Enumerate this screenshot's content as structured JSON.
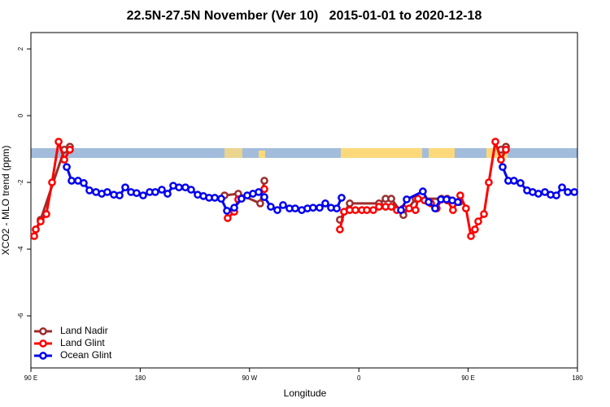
{
  "chart_data": {
    "type": "line",
    "title": "22.5N-27.5N November (Ver 10)   2015-01-01 to 2020-12-18",
    "x_label": "Longitude",
    "y_label": "XCO2 - MLO trend (ppm)",
    "xlim": [
      90,
      540
    ],
    "xticks": [
      {
        "value": 90,
        "label": "90 E"
      },
      {
        "value": 180,
        "label": "180"
      },
      {
        "value": 270,
        "label": "90 W"
      },
      {
        "value": 360,
        "label": "0"
      },
      {
        "value": 450,
        "label": "90 E"
      },
      {
        "value": 540,
        "label": "180"
      }
    ],
    "ylim": [
      -7.56,
      2.49
    ],
    "yticks": [
      2,
      0,
      -2,
      -4,
      -6
    ],
    "legend": "bottom-left",
    "series": [
      {
        "name": "Land Nadir",
        "color": "#9b2d2d",
        "x": [
          94.0,
          98.0,
          117.5,
          122.1,
          200,
          249.4,
          260.7,
          278.8,
          282.2,
          320,
          344.4,
          352.5,
          376.6,
          382.0,
          386.7,
          396.7,
          406.7,
          428.1,
          432.8,
          442.9,
          460,
          477.0,
          481.1
        ],
        "values": [
          -3.41,
          -3.12,
          -1.02,
          -0.93,
          null,
          -2.39,
          -2.34,
          -2.63,
          -1.95,
          null,
          -3.12,
          -2.63,
          -2.63,
          -2.49,
          -2.49,
          -2.98,
          -2.49,
          -2.49,
          -2.49,
          -2.59,
          null,
          -1.02,
          -0.93
        ]
      },
      {
        "name": "Land Glint",
        "color": "#ff0000",
        "x": [
          92.7,
          94.0,
          98.0,
          102.7,
          107.4,
          112.8,
          117.5,
          122.1,
          200,
          252.0,
          257.4,
          260.7,
          270,
          282.2,
          320,
          344.4,
          347.8,
          352.5,
          357.2,
          362.5,
          366.6,
          371.9,
          376.6,
          382.0,
          386.7,
          391.3,
          396.7,
          401.4,
          406.7,
          408.7,
          414.1,
          419.4,
          424.1,
          428.1,
          432.8,
          437.5,
          443.5,
          448.2,
          452.3,
          455.6,
          458.3,
          463.0,
          467.0,
          472.4,
          477.0,
          481.1
        ],
        "values": [
          -3.61,
          -3.41,
          -3.17,
          -2.95,
          -2.0,
          -0.78,
          -1.32,
          -1.02,
          null,
          -3.07,
          -2.88,
          -2.51,
          null,
          -2.2,
          null,
          -3.41,
          -2.88,
          -2.83,
          -2.83,
          -2.83,
          -2.83,
          -2.83,
          -2.73,
          -2.73,
          -2.73,
          -2.83,
          -2.78,
          -2.78,
          -2.83,
          -2.49,
          -2.54,
          -2.63,
          -2.78,
          -2.51,
          -2.54,
          -2.83,
          -2.39,
          -2.78,
          -3.61,
          -3.41,
          -3.17,
          -2.95,
          -2.0,
          -0.78,
          -1.32,
          -1.02
        ]
      },
      {
        "name": "Ocean Glint",
        "color": "#0000ee",
        "x": [
          119.5,
          123.5,
          128.8,
          133.5,
          138.2,
          143.6,
          148.3,
          152.9,
          158.3,
          163.0,
          167.7,
          172.4,
          177.0,
          182.4,
          187.8,
          192.4,
          197.8,
          202.5,
          207.2,
          211.9,
          217.2,
          221.9,
          227.3,
          232.0,
          236.7,
          241.4,
          246.7,
          251.4,
          257.4,
          263.4,
          268.1,
          272.8,
          277.5,
          282.2,
          287.5,
          292.9,
          297.6,
          302.9,
          307.6,
          313.0,
          317.7,
          322.3,
          327.7,
          332.4,
          337.1,
          341.8,
          345.8,
          370,
          394.7,
          399.4,
          412.7,
          417.4,
          422.8,
          427.5,
          432.2,
          436.9,
          441.5,
          460,
          478.4,
          483.0,
          487.7,
          493.1,
          498.5,
          503.1,
          507.8,
          513.2,
          517.9,
          522.6,
          527.3,
          532.0,
          537.4
        ],
        "values": [
          -1.54,
          -1.95,
          -1.95,
          -2.02,
          -2.24,
          -2.29,
          -2.34,
          -2.29,
          -2.37,
          -2.39,
          -2.15,
          -2.29,
          -2.32,
          -2.39,
          -2.29,
          -2.29,
          -2.22,
          -2.34,
          -2.1,
          -2.15,
          -2.15,
          -2.22,
          -2.37,
          -2.41,
          -2.46,
          -2.46,
          -2.49,
          -2.85,
          -2.76,
          -2.49,
          -2.39,
          -2.34,
          -2.29,
          -2.44,
          -2.73,
          -2.83,
          -2.68,
          -2.78,
          -2.78,
          -2.83,
          -2.78,
          -2.76,
          -2.76,
          -2.63,
          -2.76,
          -2.78,
          -2.46,
          null,
          -2.83,
          -2.51,
          -2.27,
          -2.59,
          -2.78,
          -2.51,
          -2.51,
          -2.54,
          -2.59,
          null,
          -1.54,
          -1.95,
          -1.95,
          -2.02,
          -2.24,
          -2.29,
          -2.34,
          -2.29,
          -2.37,
          -2.39,
          -2.15,
          -2.29,
          -2.29
        ]
      }
    ]
  }
}
